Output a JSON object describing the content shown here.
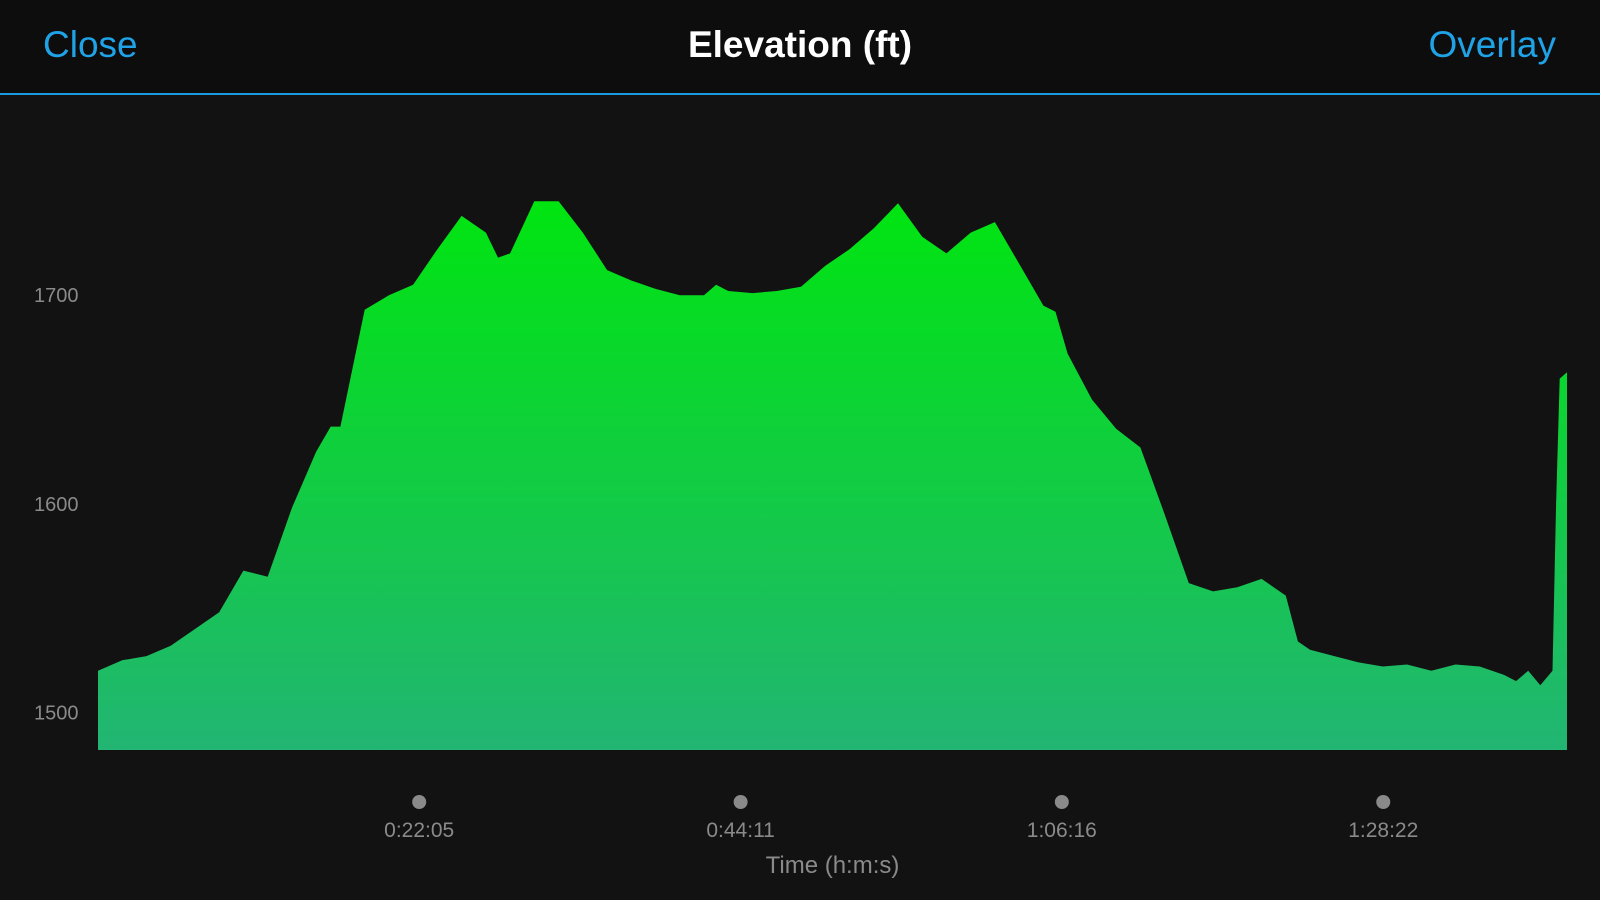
{
  "header": {
    "close_label": "Close",
    "title": "Elevation (ft)",
    "overlay_label": "Overlay"
  },
  "colors": {
    "accent": "#1fa2e6",
    "fill_top": "#00e510",
    "fill_bottom": "#22b573",
    "background": "#121212"
  },
  "chart_data": {
    "type": "area",
    "title": "Elevation (ft)",
    "xlabel": "Time (h:m:s)",
    "ylabel": "",
    "ylim": [
      1482,
      1748
    ],
    "xlim": [
      0,
      6060
    ],
    "yticks": [
      1500,
      1600,
      1700
    ],
    "ytick_labels": [
      "1500",
      "1600",
      "1700"
    ],
    "xticks": [
      1325,
      2651,
      3976,
      5302
    ],
    "xtick_labels": [
      "0:22:05",
      "0:44:11",
      "1:06:16",
      "1:28:22"
    ],
    "grid": false,
    "legend": "none",
    "series": [
      {
        "x": [
          0,
          100,
          200,
          300,
          400,
          500,
          600,
          700,
          800,
          900,
          960,
          1000,
          1100,
          1200,
          1300,
          1400,
          1500,
          1600,
          1650,
          1700,
          1800,
          1900,
          2000,
          2100,
          2200,
          2300,
          2400,
          2500,
          2550,
          2600,
          2700,
          2800,
          2900,
          3000,
          3100,
          3200,
          3300,
          3400,
          3500,
          3600,
          3700,
          3800,
          3900,
          3950,
          4000,
          4100,
          4200,
          4300,
          4400,
          4500,
          4600,
          4700,
          4800,
          4900,
          4950,
          5000,
          5100,
          5200,
          5300,
          5400,
          5500,
          5600,
          5700,
          5800,
          5850,
          5900,
          5950,
          6000,
          6015,
          6030,
          6060
        ],
        "y": [
          1520,
          1525,
          1527,
          1532,
          1540,
          1548,
          1568,
          1565,
          1598,
          1625,
          1637,
          1637,
          1693,
          1700,
          1705,
          1722,
          1738,
          1730,
          1718,
          1720,
          1745,
          1745,
          1730,
          1712,
          1707,
          1703,
          1700,
          1700,
          1705,
          1702,
          1701,
          1702,
          1704,
          1714,
          1722,
          1732,
          1744,
          1728,
          1720,
          1730,
          1735,
          1715,
          1695,
          1692,
          1672,
          1650,
          1636,
          1627,
          1595,
          1562,
          1558,
          1560,
          1564,
          1556,
          1534,
          1530,
          1527,
          1524,
          1522,
          1523,
          1520,
          1523,
          1522,
          1518,
          1515,
          1520,
          1513,
          1520,
          1600,
          1660,
          1663
        ]
      }
    ]
  }
}
